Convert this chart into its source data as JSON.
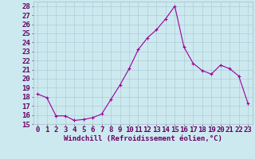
{
  "x": [
    0,
    1,
    2,
    3,
    4,
    5,
    6,
    7,
    8,
    9,
    10,
    11,
    12,
    13,
    14,
    15,
    16,
    17,
    18,
    19,
    20,
    21,
    22,
    23
  ],
  "y": [
    18.3,
    17.9,
    15.9,
    15.9,
    15.4,
    15.5,
    15.7,
    16.1,
    17.7,
    19.3,
    21.1,
    23.2,
    24.5,
    25.4,
    26.6,
    28.0,
    23.5,
    21.7,
    20.9,
    20.5,
    21.5,
    21.1,
    20.3,
    17.3
  ],
  "line_color": "#990099",
  "marker": "+",
  "marker_size": 3,
  "xlabel": "Windchill (Refroidissement éolien,°C)",
  "xlim": [
    -0.5,
    23.5
  ],
  "ylim": [
    15,
    28.5
  ],
  "yticks": [
    15,
    16,
    17,
    18,
    19,
    20,
    21,
    22,
    23,
    24,
    25,
    26,
    27,
    28
  ],
  "xticks": [
    0,
    1,
    2,
    3,
    4,
    5,
    6,
    7,
    8,
    9,
    10,
    11,
    12,
    13,
    14,
    15,
    16,
    17,
    18,
    19,
    20,
    21,
    22,
    23
  ],
  "bg_color": "#cde9f0",
  "grid_color": "#b0ccd4",
  "text_color": "#660066",
  "font_size": 6.5
}
